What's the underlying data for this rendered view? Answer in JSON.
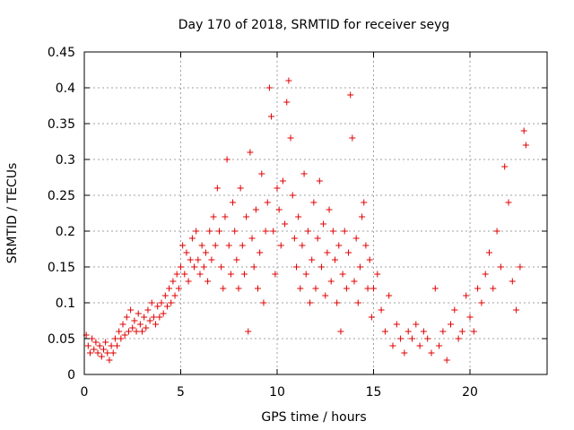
{
  "chart_data": {
    "type": "scatter",
    "title": "Day 170 of 2018, SRMTID for receiver seyg",
    "xlabel": "GPS time / hours",
    "ylabel": "SRMTID / TECUs",
    "xlim": [
      0,
      24
    ],
    "ylim": [
      0,
      0.45
    ],
    "xticks": [
      0,
      5,
      10,
      15,
      20
    ],
    "xtick_labels": [
      "0",
      "5",
      "10",
      "15",
      "20"
    ],
    "yticks": [
      0,
      0.05,
      0.1,
      0.15,
      0.2,
      0.25,
      0.3,
      0.35,
      0.4,
      0.45
    ],
    "ytick_labels": [
      "0",
      "0.05",
      "0.1",
      "0.15",
      "0.2",
      "0.25",
      "0.3",
      "0.35",
      "0.4",
      "0.45"
    ],
    "grid": true,
    "marker": "+",
    "color": "#e00000",
    "series": [
      {
        "name": "SRMTID",
        "points": [
          [
            0.1,
            0.055
          ],
          [
            0.2,
            0.04
          ],
          [
            0.3,
            0.03
          ],
          [
            0.4,
            0.05
          ],
          [
            0.5,
            0.035
          ],
          [
            0.6,
            0.045
          ],
          [
            0.7,
            0.03
          ],
          [
            0.8,
            0.04
          ],
          [
            0.9,
            0.025
          ],
          [
            1.0,
            0.035
          ],
          [
            1.1,
            0.045
          ],
          [
            1.2,
            0.03
          ],
          [
            1.3,
            0.02
          ],
          [
            1.4,
            0.04
          ],
          [
            1.5,
            0.03
          ],
          [
            1.6,
            0.05
          ],
          [
            1.7,
            0.04
          ],
          [
            1.8,
            0.06
          ],
          [
            1.9,
            0.05
          ],
          [
            2.0,
            0.07
          ],
          [
            2.1,
            0.055
          ],
          [
            2.2,
            0.08
          ],
          [
            2.3,
            0.06
          ],
          [
            2.4,
            0.09
          ],
          [
            2.5,
            0.065
          ],
          [
            2.6,
            0.075
          ],
          [
            2.7,
            0.06
          ],
          [
            2.8,
            0.085
          ],
          [
            2.9,
            0.07
          ],
          [
            3.0,
            0.06
          ],
          [
            3.1,
            0.08
          ],
          [
            3.2,
            0.065
          ],
          [
            3.3,
            0.09
          ],
          [
            3.4,
            0.075
          ],
          [
            3.5,
            0.1
          ],
          [
            3.6,
            0.08
          ],
          [
            3.7,
            0.07
          ],
          [
            3.8,
            0.095
          ],
          [
            3.9,
            0.08
          ],
          [
            4.0,
            0.1
          ],
          [
            4.1,
            0.085
          ],
          [
            4.2,
            0.11
          ],
          [
            4.3,
            0.095
          ],
          [
            4.4,
            0.12
          ],
          [
            4.5,
            0.1
          ],
          [
            4.6,
            0.13
          ],
          [
            4.7,
            0.11
          ],
          [
            4.8,
            0.14
          ],
          [
            4.9,
            0.12
          ],
          [
            5.0,
            0.15
          ],
          [
            5.1,
            0.18
          ],
          [
            5.2,
            0.14
          ],
          [
            5.3,
            0.17
          ],
          [
            5.4,
            0.13
          ],
          [
            5.5,
            0.16
          ],
          [
            5.6,
            0.19
          ],
          [
            5.7,
            0.15
          ],
          [
            5.8,
            0.2
          ],
          [
            5.9,
            0.16
          ],
          [
            6.0,
            0.14
          ],
          [
            6.1,
            0.18
          ],
          [
            6.2,
            0.15
          ],
          [
            6.3,
            0.17
          ],
          [
            6.4,
            0.13
          ],
          [
            6.5,
            0.2
          ],
          [
            6.6,
            0.16
          ],
          [
            6.7,
            0.22
          ],
          [
            6.8,
            0.18
          ],
          [
            6.9,
            0.26
          ],
          [
            7.0,
            0.2
          ],
          [
            7.1,
            0.15
          ],
          [
            7.2,
            0.12
          ],
          [
            7.3,
            0.22
          ],
          [
            7.4,
            0.3
          ],
          [
            7.5,
            0.18
          ],
          [
            7.6,
            0.14
          ],
          [
            7.7,
            0.24
          ],
          [
            7.8,
            0.2
          ],
          [
            7.9,
            0.16
          ],
          [
            8.0,
            0.12
          ],
          [
            8.1,
            0.26
          ],
          [
            8.2,
            0.18
          ],
          [
            8.3,
            0.14
          ],
          [
            8.4,
            0.22
          ],
          [
            8.5,
            0.06
          ],
          [
            8.6,
            0.31
          ],
          [
            8.7,
            0.19
          ],
          [
            8.8,
            0.15
          ],
          [
            8.9,
            0.23
          ],
          [
            9.0,
            0.12
          ],
          [
            9.1,
            0.17
          ],
          [
            9.2,
            0.28
          ],
          [
            9.3,
            0.1
          ],
          [
            9.4,
            0.2
          ],
          [
            9.5,
            0.24
          ],
          [
            9.6,
            0.4
          ],
          [
            9.7,
            0.36
          ],
          [
            9.8,
            0.2
          ],
          [
            9.9,
            0.14
          ],
          [
            10.0,
            0.26
          ],
          [
            10.1,
            0.23
          ],
          [
            10.2,
            0.18
          ],
          [
            10.3,
            0.27
          ],
          [
            10.4,
            0.21
          ],
          [
            10.5,
            0.38
          ],
          [
            10.6,
            0.41
          ],
          [
            10.7,
            0.33
          ],
          [
            10.8,
            0.25
          ],
          [
            10.9,
            0.19
          ],
          [
            11.0,
            0.15
          ],
          [
            11.1,
            0.22
          ],
          [
            11.2,
            0.12
          ],
          [
            11.3,
            0.18
          ],
          [
            11.4,
            0.28
          ],
          [
            11.5,
            0.14
          ],
          [
            11.6,
            0.2
          ],
          [
            11.7,
            0.1
          ],
          [
            11.8,
            0.16
          ],
          [
            11.9,
            0.24
          ],
          [
            12.0,
            0.12
          ],
          [
            12.1,
            0.19
          ],
          [
            12.2,
            0.27
          ],
          [
            12.3,
            0.15
          ],
          [
            12.4,
            0.21
          ],
          [
            12.5,
            0.11
          ],
          [
            12.6,
            0.17
          ],
          [
            12.7,
            0.23
          ],
          [
            12.8,
            0.13
          ],
          [
            12.9,
            0.2
          ],
          [
            13.0,
            0.16
          ],
          [
            13.1,
            0.1
          ],
          [
            13.2,
            0.18
          ],
          [
            13.3,
            0.06
          ],
          [
            13.4,
            0.14
          ],
          [
            13.5,
            0.2
          ],
          [
            13.6,
            0.12
          ],
          [
            13.7,
            0.17
          ],
          [
            13.8,
            0.39
          ],
          [
            13.9,
            0.33
          ],
          [
            14.0,
            0.13
          ],
          [
            14.1,
            0.19
          ],
          [
            14.2,
            0.1
          ],
          [
            14.3,
            0.15
          ],
          [
            14.4,
            0.22
          ],
          [
            14.5,
            0.24
          ],
          [
            14.6,
            0.18
          ],
          [
            14.7,
            0.12
          ],
          [
            14.8,
            0.16
          ],
          [
            14.9,
            0.08
          ],
          [
            15.0,
            0.12
          ],
          [
            15.2,
            0.14
          ],
          [
            15.4,
            0.09
          ],
          [
            15.6,
            0.06
          ],
          [
            15.8,
            0.11
          ],
          [
            16.0,
            0.04
          ],
          [
            16.2,
            0.07
          ],
          [
            16.4,
            0.05
          ],
          [
            16.6,
            0.03
          ],
          [
            16.8,
            0.06
          ],
          [
            17.0,
            0.05
          ],
          [
            17.2,
            0.07
          ],
          [
            17.4,
            0.04
          ],
          [
            17.6,
            0.06
          ],
          [
            17.8,
            0.05
          ],
          [
            18.0,
            0.03
          ],
          [
            18.2,
            0.12
          ],
          [
            18.4,
            0.04
          ],
          [
            18.6,
            0.06
          ],
          [
            18.8,
            0.02
          ],
          [
            19.0,
            0.07
          ],
          [
            19.2,
            0.09
          ],
          [
            19.4,
            0.05
          ],
          [
            19.6,
            0.06
          ],
          [
            19.8,
            0.11
          ],
          [
            20.0,
            0.08
          ],
          [
            20.2,
            0.06
          ],
          [
            20.4,
            0.12
          ],
          [
            20.6,
            0.1
          ],
          [
            20.8,
            0.14
          ],
          [
            21.0,
            0.17
          ],
          [
            21.2,
            0.12
          ],
          [
            21.4,
            0.2
          ],
          [
            21.6,
            0.15
          ],
          [
            21.8,
            0.29
          ],
          [
            22.0,
            0.24
          ],
          [
            22.2,
            0.13
          ],
          [
            22.4,
            0.09
          ],
          [
            22.6,
            0.15
          ],
          [
            22.8,
            0.34
          ],
          [
            22.9,
            0.32
          ]
        ]
      }
    ]
  }
}
